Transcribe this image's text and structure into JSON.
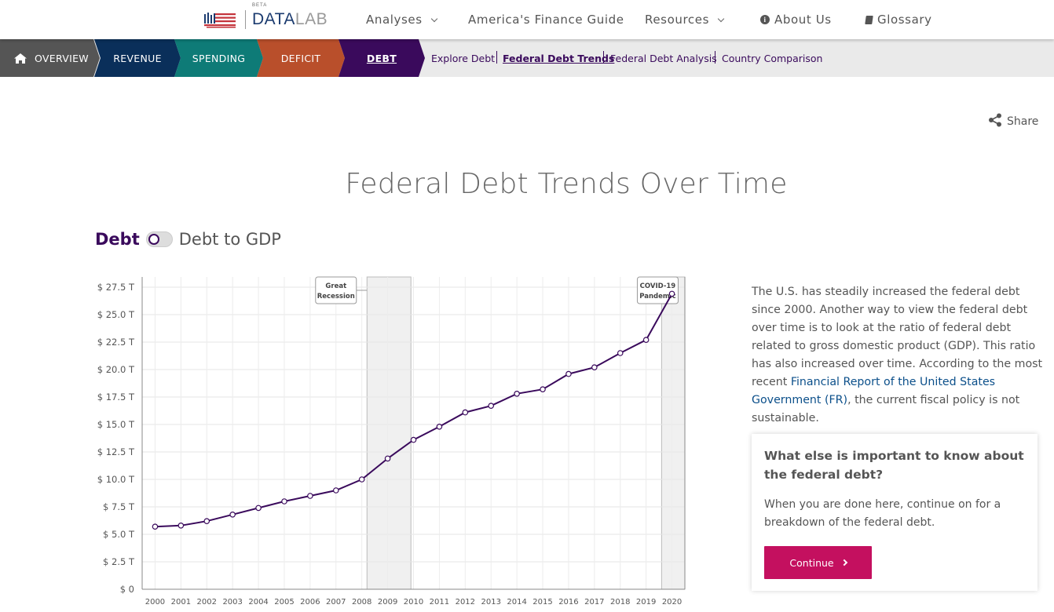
{
  "header": {
    "logo": {
      "beta": "BETA",
      "data": "DATA",
      "lab": "LAB"
    },
    "nav": [
      {
        "label": "Analyses",
        "has_dropdown": true
      },
      {
        "label": "America's Finance Guide",
        "has_dropdown": false
      },
      {
        "label": "Resources",
        "has_dropdown": true
      },
      {
        "label": "About Us",
        "icon": "info-icon"
      },
      {
        "label": "Glossary",
        "icon": "book-icon"
      }
    ]
  },
  "section_nav": {
    "tabs": [
      {
        "label": "OVERVIEW",
        "icon": "home-icon",
        "color": "#555555"
      },
      {
        "label": "REVENUE",
        "color": "#0a2f5a"
      },
      {
        "label": "SPENDING",
        "color": "#0e7b77"
      },
      {
        "label": "DEFICIT",
        "color": "#b94f2b"
      },
      {
        "label": "DEBT",
        "color": "#3a0a5c",
        "active": true
      }
    ],
    "sub_links": [
      {
        "label": "Explore Debt"
      },
      {
        "label": "Federal Debt Trends",
        "active": true
      },
      {
        "label": "Federal Debt Analysis"
      },
      {
        "label": "Country Comparison"
      }
    ]
  },
  "share": {
    "label": "Share",
    "icon": "share-icon"
  },
  "page_title": "Federal Debt Trends Over Time",
  "toggle": {
    "left_label": "Debt",
    "right_label": "Debt to GDP",
    "state": "Debt"
  },
  "chart_data": {
    "type": "line",
    "x": [
      2000,
      2001,
      2002,
      2003,
      2004,
      2005,
      2006,
      2007,
      2008,
      2009,
      2010,
      2011,
      2012,
      2013,
      2014,
      2015,
      2016,
      2017,
      2018,
      2019,
      2020
    ],
    "series": [
      {
        "values": [
          5.7,
          5.8,
          6.2,
          6.8,
          7.4,
          8.0,
          8.5,
          9.0,
          10.0,
          11.9,
          13.6,
          14.8,
          16.1,
          16.7,
          17.8,
          18.2,
          19.6,
          20.2,
          21.5,
          22.7,
          26.9
        ]
      }
    ],
    "y_ticks": [
      "$ 0",
      "$ 2.5 T",
      "$ 5.0 T",
      "$ 7.5 T",
      "$ 10.0 T",
      "$ 12.5 T",
      "$ 15.0 T",
      "$ 17.5 T",
      "$ 20.0 T",
      "$ 22.5 T",
      "$ 25.0 T",
      "$ 27.5 T"
    ],
    "ylim": [
      0,
      27.5
    ],
    "xlim": [
      1999.5,
      2020.5
    ],
    "line_color": "#3a0a5c",
    "grid": true,
    "shaded_periods": [
      {
        "label_line1": "Great",
        "label_line2": "Recession",
        "start": 2008.2,
        "end": 2009.9
      },
      {
        "label_line1": "COVID-19",
        "label_line2": "Pandemic",
        "start": 2019.6,
        "end": 2020.5
      }
    ]
  },
  "description": {
    "text_before": "The U.S. has steadily increased the federal debt since 2000. Another way to view the federal debt over time is to look at the ratio of federal debt related to gross domestic product (GDP). This ratio has also increased over time. According to the most recent ",
    "link_text": "Financial Report of the United States Government (FR)",
    "text_after": ", the current fiscal policy is not sustainable."
  },
  "card": {
    "title": "What else is important to know about the federal debt?",
    "body": "When you are done here, continue on for a breakdown of the federal debt.",
    "button_label": "Continue"
  }
}
